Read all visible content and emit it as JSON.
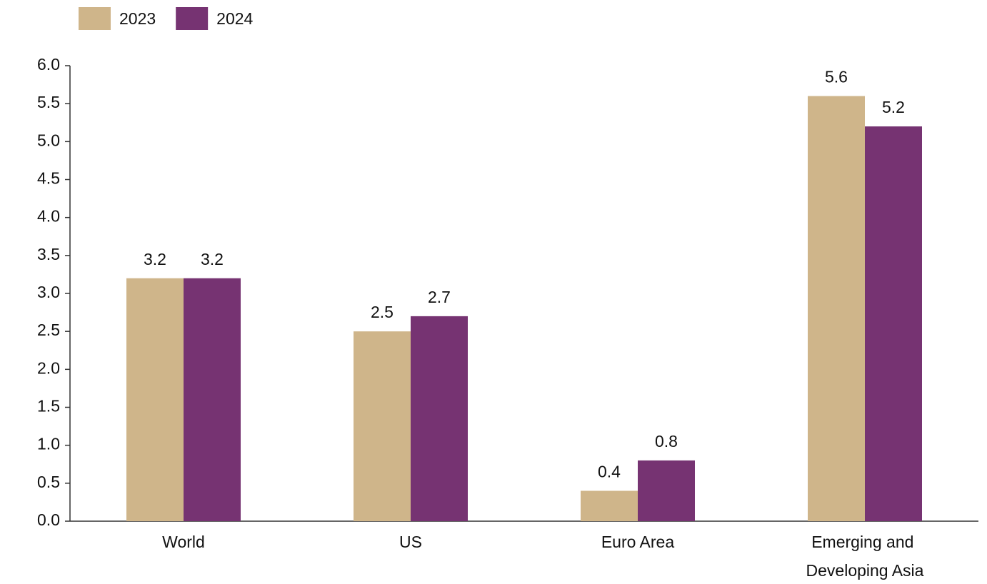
{
  "chart_data": {
    "type": "bar",
    "categories": [
      "World",
      "US",
      "Euro Area",
      "Emerging and Developing Asia"
    ],
    "series": [
      {
        "name": "2023",
        "color": "#cfb58a",
        "values": [
          3.2,
          2.5,
          0.4,
          5.6
        ]
      },
      {
        "name": "2024",
        "color": "#763372",
        "values": [
          3.2,
          2.7,
          0.8,
          5.2
        ]
      }
    ],
    "ylim": [
      0,
      6
    ],
    "yticks": [
      {
        "value": 0,
        "label": "0.0"
      },
      0.5,
      {
        "value": 1,
        "label": "1.0"
      },
      1.5,
      {
        "value": 2,
        "label": "2.0"
      },
      2.5,
      {
        "value": 3,
        "label": "3.0"
      },
      3.5,
      {
        "value": 4,
        "label": "4.0"
      },
      4.5,
      {
        "value": 5,
        "label": "5.0"
      },
      5.5,
      {
        "value": 6,
        "label": "6.0"
      }
    ],
    "grid": false,
    "legend": "top-left"
  }
}
